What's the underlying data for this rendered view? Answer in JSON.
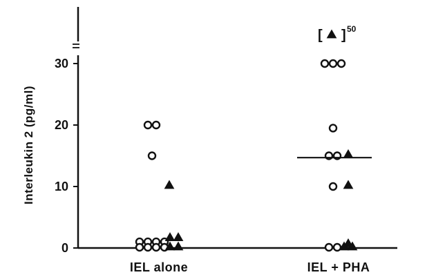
{
  "chart_data": {
    "type": "scatter",
    "ylabel": "Interleukin  2  (pg/ml)",
    "categories": [
      "IEL  alone",
      "IEL  +  PHA"
    ],
    "yticks": [
      0,
      10,
      20,
      30
    ],
    "ylim": [
      0,
      33
    ],
    "axis_break": true,
    "grid": false,
    "colors": {
      "ink": "#111111",
      "open_fill": "#ffffff"
    },
    "series": [
      {
        "marker": "open-circle",
        "points": [
          {
            "x": "IEL  alone",
            "y": 20
          },
          {
            "x": "IEL  alone",
            "y": 20
          },
          {
            "x": "IEL  alone",
            "y": 15
          },
          {
            "x": "IEL  alone",
            "y": 1
          },
          {
            "x": "IEL  alone",
            "y": 1
          },
          {
            "x": "IEL  alone",
            "y": 1
          },
          {
            "x": "IEL  alone",
            "y": 1
          },
          {
            "x": "IEL  alone",
            "y": 0
          },
          {
            "x": "IEL  alone",
            "y": 0
          },
          {
            "x": "IEL  alone",
            "y": 0
          },
          {
            "x": "IEL  alone",
            "y": 0
          },
          {
            "x": "IEL  +  PHA",
            "y": 30
          },
          {
            "x": "IEL  +  PHA",
            "y": 30
          },
          {
            "x": "IEL  +  PHA",
            "y": 30
          },
          {
            "x": "IEL  +  PHA",
            "y": 19.5
          },
          {
            "x": "IEL  +  PHA",
            "y": 15
          },
          {
            "x": "IEL  +  PHA",
            "y": 15
          },
          {
            "x": "IEL  +  PHA",
            "y": 10
          },
          {
            "x": "IEL  +  PHA",
            "y": 0
          },
          {
            "x": "IEL  +  PHA",
            "y": 0
          }
        ]
      },
      {
        "marker": "filled-triangle",
        "points": [
          {
            "x": "IEL  alone",
            "y": 10
          },
          {
            "x": "IEL  alone",
            "y": 1.5
          },
          {
            "x": "IEL  alone",
            "y": 1.5
          },
          {
            "x": "IEL  alone",
            "y": 0
          },
          {
            "x": "IEL  alone",
            "y": 0
          },
          {
            "x": "IEL  +  PHA",
            "y": 15
          },
          {
            "x": "IEL  +  PHA",
            "y": 10
          },
          {
            "x": "IEL  +  PHA",
            "y": 0.5
          },
          {
            "x": "IEL  +  PHA",
            "y": 0
          },
          {
            "x": "IEL  +  PHA",
            "y": 0
          }
        ]
      }
    ],
    "median_lines": [
      {
        "x": "IEL  +  PHA",
        "y": 14.7
      }
    ],
    "annotations": [
      {
        "x": "IEL  +  PHA",
        "marker": "filled-triangle",
        "open": "[",
        "close": "]",
        "value": "50"
      }
    ]
  }
}
